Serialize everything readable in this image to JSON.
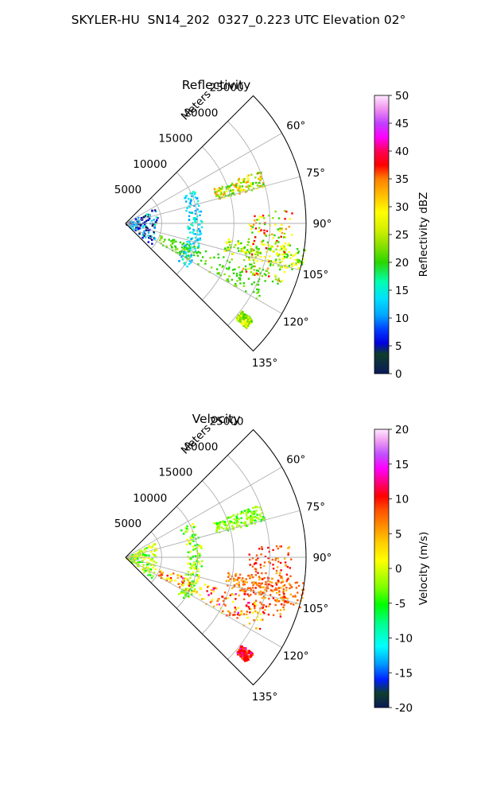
{
  "figure": {
    "title": "SKYLER-HU  SN14_202  0327_0.223 UTC Elevation 02°"
  },
  "chart_data": [
    {
      "type": "polar-sector",
      "title": "Reflectivity",
      "range_label": "Meters",
      "range_ticks": [
        5000,
        10000,
        15000,
        20000,
        25000
      ],
      "range_max": 25000,
      "azimuth_ticks": [
        "60°",
        "75°",
        "90°",
        "105°",
        "120°",
        "135°"
      ],
      "azimuth_tick_values": [
        60,
        75,
        90,
        105,
        120,
        135
      ],
      "azimuth_range": [
        45,
        135
      ],
      "grid": true,
      "colorbar": {
        "label": "Reflectivity dBZ",
        "min": 0,
        "max": 50,
        "ticks": [
          0,
          5,
          10,
          15,
          20,
          25,
          30,
          35,
          40,
          45,
          50
        ],
        "colormap": "NWS reflectivity (dark blue → cyan → green → yellow → red → magenta → white)"
      },
      "echo_features": [
        {
          "name": "near-radar clutter",
          "az": [
            60,
            130
          ],
          "range_m": [
            0,
            4500
          ],
          "value_range": [
            0,
            15
          ]
        },
        {
          "name": "arc at ~9 km",
          "az": [
            62,
            125
          ],
          "range_m": [
            8500,
            10500
          ],
          "value_range": [
            8,
            16
          ]
        },
        {
          "name": "cluster 68–75°",
          "az": [
            68,
            75
          ],
          "range_m": [
            13000,
            20000
          ],
          "value_range": [
            18,
            35
          ]
        },
        {
          "name": "radial line ~105°",
          "az": [
            98,
            106
          ],
          "range_m": [
            14000,
            25000
          ],
          "value_range": [
            18,
            30
          ]
        },
        {
          "name": "cross line 90–110°",
          "az": [
            85,
            112
          ],
          "range_m": [
            17000,
            23000
          ],
          "value_range": [
            18,
            38
          ]
        },
        {
          "name": "lower band 110–120°",
          "az": [
            108,
            120
          ],
          "range_m": [
            5000,
            21000
          ],
          "value_range": [
            18,
            22
          ]
        },
        {
          "name": "far patch ~130°",
          "az": [
            127,
            131
          ],
          "range_m": [
            20000,
            22000
          ],
          "value_range": [
            20,
            30
          ]
        }
      ]
    },
    {
      "type": "polar-sector",
      "title": "Velocity",
      "range_label": "Meters",
      "range_ticks": [
        5000,
        10000,
        15000,
        20000,
        25000
      ],
      "range_max": 25000,
      "azimuth_ticks": [
        "60°",
        "75°",
        "90°",
        "105°",
        "120°",
        "135°"
      ],
      "azimuth_tick_values": [
        60,
        75,
        90,
        105,
        120,
        135
      ],
      "azimuth_range": [
        45,
        135
      ],
      "grid": true,
      "colorbar": {
        "label": "Velocity (m/s)",
        "min": -20,
        "max": 20,
        "ticks": [
          -20,
          -15,
          -10,
          -5,
          0,
          5,
          10,
          15,
          20
        ],
        "colormap": "diverging (dark blue → cyan → green → yellow → orange → red → magenta → pink)"
      },
      "echo_features": [
        {
          "name": "near-radar clutter",
          "az": [
            60,
            130
          ],
          "range_m": [
            0,
            4500
          ],
          "value_range": [
            -3,
            2
          ]
        },
        {
          "name": "arc at ~9 km",
          "az": [
            62,
            125
          ],
          "range_m": [
            8500,
            10500
          ],
          "value_range": [
            -4,
            2
          ]
        },
        {
          "name": "cluster 68–75°",
          "az": [
            68,
            75
          ],
          "range_m": [
            13000,
            20000
          ],
          "value_range": [
            -3,
            0
          ]
        },
        {
          "name": "radial line ~105°",
          "az": [
            98,
            106
          ],
          "range_m": [
            14000,
            25000
          ],
          "value_range": [
            7,
            10
          ]
        },
        {
          "name": "cross line 90–110°",
          "az": [
            85,
            112
          ],
          "range_m": [
            17000,
            23000
          ],
          "value_range": [
            7,
            14
          ]
        },
        {
          "name": "lower band 110–120°",
          "az": [
            108,
            120
          ],
          "range_m": [
            5000,
            21000
          ],
          "value_range": [
            0,
            15
          ]
        },
        {
          "name": "far patch ~130°",
          "az": [
            127,
            131
          ],
          "range_m": [
            20000,
            22000
          ],
          "value_range": [
            10,
            15
          ]
        }
      ]
    }
  ]
}
